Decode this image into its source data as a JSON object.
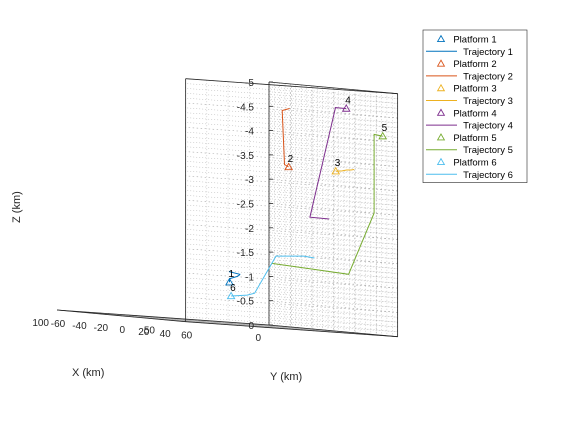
{
  "chart_data": {
    "type": "line3d",
    "xlabel": "X (km)",
    "ylabel": "Y (km)",
    "zlabel": "Z (km)",
    "xlim": [
      0,
      100
    ],
    "ylim": [
      -60,
      60
    ],
    "zlim": [
      -5,
      0
    ],
    "z_reversed": true,
    "grid": "on (major and minor, dotted)",
    "legend_position": "top-right, outside",
    "x_ticks": [
      "0",
      "50",
      "100"
    ],
    "y_ticks": [
      "-60",
      "-40",
      "-20",
      "0",
      "20",
      "40",
      "60"
    ],
    "z_ticks": [
      "-5",
      "-4.5",
      "-4",
      "-3.5",
      "-3",
      "-2.5",
      "-2",
      "-1.5",
      "-1",
      "-0.5",
      "0"
    ],
    "series": [
      {
        "name": "Platform 1",
        "trajectory_name": "Trajectory 1",
        "label": "1",
        "color": "#0072BD",
        "platform": [
          50,
          2,
          -0.85
        ],
        "trajectory": [
          [
            30,
            -38,
            -1.05
          ],
          [
            35,
            -18,
            -1.02
          ],
          [
            42,
            -5,
            -1.0
          ],
          [
            48,
            5,
            -0.98
          ],
          [
            50,
            2,
            -0.92
          ],
          [
            50,
            2,
            -0.85
          ]
        ]
      },
      {
        "name": "Platform 2",
        "trajectory_name": "Trajectory 2",
        "label": "2",
        "color": "#D95319",
        "platform": [
          14,
          -14,
          -3.3
        ],
        "trajectory": [
          [
            8,
            -25,
            -4.5
          ],
          [
            13,
            -22,
            -4.45
          ],
          [
            20,
            -6,
            -3.35
          ],
          [
            14,
            -14,
            -3.3
          ]
        ]
      },
      {
        "name": "Platform 3",
        "trajectory_name": "Trajectory 3",
        "label": "3",
        "color": "#EDB120",
        "platform": [
          12,
          26,
          -3.3
        ],
        "trajectory": [
          [
            12,
            26,
            -3.3
          ],
          [
            14,
            36,
            -3.32
          ],
          [
            17,
            46,
            -3.35
          ],
          [
            20,
            56,
            -3.36
          ],
          [
            23,
            65,
            -3.38
          ]
        ]
      },
      {
        "name": "Platform 4",
        "trajectory_name": "Trajectory 4",
        "label": "4",
        "color": "#7E2F8E",
        "platform": [
          2,
          16,
          -4.6
        ],
        "trajectory": [
          [
            2,
            16,
            -4.6
          ],
          [
            2,
            6,
            -4.6
          ],
          [
            7,
            -8,
            -2.3
          ],
          [
            7,
            0,
            -2.3
          ],
          [
            7,
            10,
            -2.3
          ]
        ]
      },
      {
        "name": "Platform 5",
        "trajectory_name": "Trajectory 5",
        "label": "5",
        "color": "#77AC30",
        "platform": [
          2,
          50,
          -4.1
        ],
        "trajectory": [
          [
            2,
            50,
            -4.1
          ],
          [
            2,
            42,
            -4.12
          ],
          [
            2,
            42,
            -2.5
          ],
          [
            10,
            34,
            -1.2
          ],
          [
            21,
            22,
            -1.25
          ],
          [
            31,
            4,
            -1.3
          ]
        ]
      },
      {
        "name": "Platform 6",
        "trajectory_name": "Trajectory 6",
        "label": "6",
        "color": "#4DBEEE",
        "platform": [
          28,
          -40,
          -0.55
        ],
        "trajectory": [
          [
            28,
            -40,
            -0.55
          ],
          [
            28,
            -25,
            -0.6
          ],
          [
            26,
            -22,
            -0.65
          ],
          [
            22,
            -10,
            -1.45
          ],
          [
            19,
            10,
            -1.5
          ],
          [
            19,
            20,
            -1.48
          ]
        ]
      }
    ]
  }
}
